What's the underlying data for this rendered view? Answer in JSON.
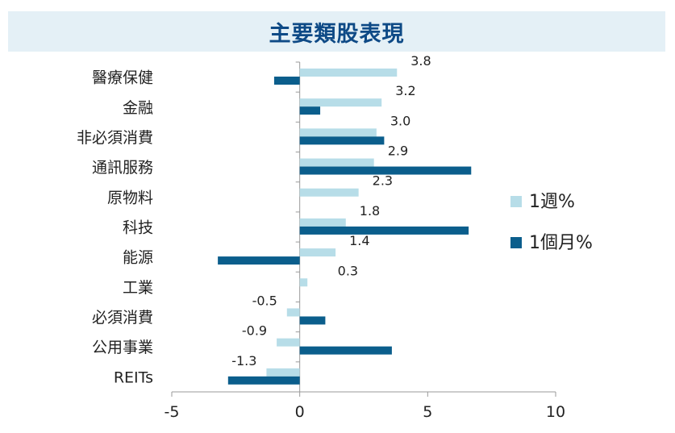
{
  "chart_data": {
    "type": "bar",
    "orientation": "horizontal",
    "title": "主要類股表現",
    "categories": [
      "醫療保健",
      "金融",
      "非必須消費",
      "通訊服務",
      "原物料",
      "科技",
      "能源",
      "工業",
      "必須消費",
      "公用事業",
      "REITs"
    ],
    "series": [
      {
        "name": "1週%",
        "color": "#b7dde8",
        "values": [
          3.8,
          3.2,
          3.0,
          2.9,
          2.3,
          1.8,
          1.4,
          0.3,
          -0.5,
          -0.9,
          -1.3
        ],
        "labels": [
          "3.8",
          "3.2",
          "3.0",
          "2.9",
          "2.3",
          "1.8",
          "1.4",
          "0.3",
          "-0.5",
          "-0.9",
          "-1.3"
        ]
      },
      {
        "name": "1個月%",
        "color": "#0b5e8c",
        "values": [
          -1.0,
          0.8,
          3.3,
          6.7,
          0.0,
          6.6,
          -3.2,
          0.0,
          1.0,
          3.6,
          -2.8
        ]
      }
    ],
    "xlim": [
      -5,
      10
    ],
    "xticks": [
      "-5",
      "0",
      "5",
      "10"
    ],
    "grid": false,
    "legend_position": "right"
  }
}
